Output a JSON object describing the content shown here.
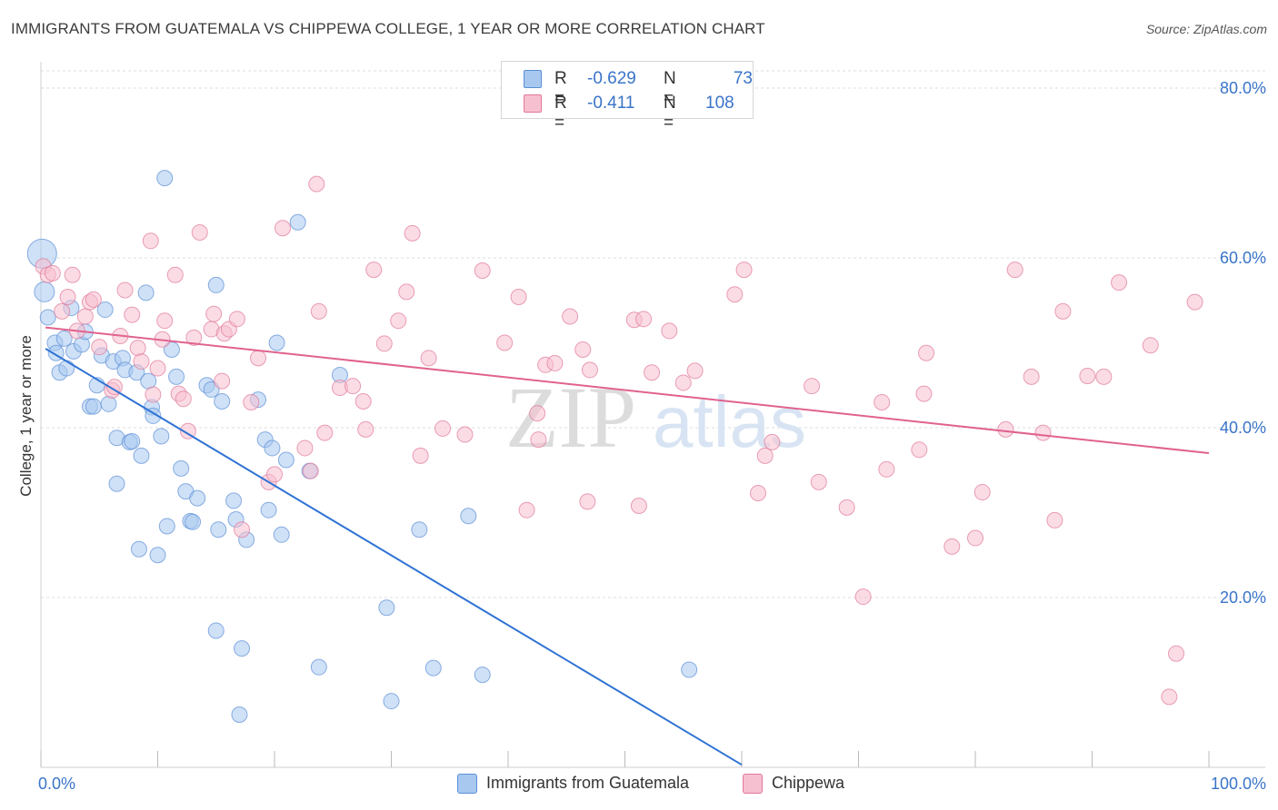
{
  "title": "IMMIGRANTS FROM GUATEMALA VS CHIPPEWA COLLEGE, 1 YEAR OR MORE CORRELATION CHART",
  "source": "Source: ZipAtlas.com",
  "watermark": {
    "zip": "ZIP",
    "atlas": "atlas"
  },
  "legend": {
    "rows": [
      {
        "r_label": "R =",
        "r_value": "-0.629",
        "n_label": "N =",
        "n_value": "73",
        "color": "#a8c8f0",
        "border": "#5b8fd6"
      },
      {
        "r_label": "R =",
        "r_value": "-0.411",
        "n_label": "N =",
        "n_value": "108",
        "color": "#f7c0d0",
        "border": "#e07898"
      }
    ]
  },
  "bottom_legend": [
    {
      "label": "Immigrants from Guatemala",
      "color": "#a8c8f0",
      "border": "#5b8fd6"
    },
    {
      "label": "Chippewa",
      "color": "#f7c0d0",
      "border": "#e07898"
    }
  ],
  "chart_data": {
    "type": "scatter",
    "xlabel": "",
    "ylabel": "College, 1 year or more",
    "xlim": [
      0,
      100
    ],
    "ylim": [
      0,
      80
    ],
    "x_tick_labels": [
      "0.0%",
      "100.0%"
    ],
    "y_ticks": [
      20,
      40,
      60,
      80
    ],
    "y_tick_labels": [
      "20.0%",
      "40.0%",
      "60.0%",
      "80.0%"
    ],
    "grid": true,
    "series": [
      {
        "name": "Immigrants from Guatemala",
        "color": "#a8c8f0",
        "stroke": "#5b8fd6",
        "line_color": "#2f73d4",
        "trend": {
          "x": [
            0.4,
            60.0
          ],
          "y": [
            49.3,
            0.3
          ]
        },
        "points": [
          [
            0.1,
            60.5
          ],
          [
            0.3,
            56.0
          ],
          [
            0.6,
            53.0
          ],
          [
            1.2,
            50.0
          ],
          [
            1.3,
            48.8
          ],
          [
            1.6,
            46.5
          ],
          [
            2.0,
            50.5
          ],
          [
            2.2,
            47.0
          ],
          [
            2.6,
            54.1
          ],
          [
            2.8,
            49.0
          ],
          [
            3.5,
            49.8
          ],
          [
            3.8,
            51.3
          ],
          [
            4.2,
            42.5
          ],
          [
            4.5,
            42.5
          ],
          [
            4.8,
            45.0
          ],
          [
            5.2,
            48.5
          ],
          [
            5.5,
            53.9
          ],
          [
            5.8,
            42.8
          ],
          [
            6.2,
            47.8
          ],
          [
            6.5,
            38.8
          ],
          [
            6.5,
            33.4
          ],
          [
            7.0,
            48.2
          ],
          [
            7.2,
            46.8
          ],
          [
            7.6,
            38.3
          ],
          [
            7.8,
            38.4
          ],
          [
            8.2,
            46.5
          ],
          [
            8.4,
            25.7
          ],
          [
            8.6,
            36.7
          ],
          [
            9.0,
            55.9
          ],
          [
            9.2,
            45.5
          ],
          [
            9.5,
            42.4
          ],
          [
            9.6,
            41.4
          ],
          [
            10.0,
            25.0
          ],
          [
            10.3,
            39.0
          ],
          [
            10.6,
            69.4
          ],
          [
            10.8,
            28.4
          ],
          [
            11.2,
            49.2
          ],
          [
            11.6,
            46.0
          ],
          [
            12.0,
            35.2
          ],
          [
            12.4,
            32.5
          ],
          [
            12.8,
            29.0
          ],
          [
            13.0,
            28.9
          ],
          [
            13.4,
            31.7
          ],
          [
            14.2,
            45.0
          ],
          [
            14.6,
            44.5
          ],
          [
            15.0,
            56.8
          ],
          [
            15.2,
            28.0
          ],
          [
            15.5,
            43.1
          ],
          [
            15.0,
            16.1
          ],
          [
            16.5,
            31.4
          ],
          [
            16.7,
            29.2
          ],
          [
            17.0,
            6.2
          ],
          [
            17.2,
            14.0
          ],
          [
            17.6,
            26.8
          ],
          [
            18.6,
            43.3
          ],
          [
            19.2,
            38.6
          ],
          [
            19.5,
            30.3
          ],
          [
            19.8,
            37.6
          ],
          [
            20.2,
            50.0
          ],
          [
            20.6,
            27.4
          ],
          [
            21.0,
            36.2
          ],
          [
            22.0,
            64.2
          ],
          [
            23.0,
            34.9
          ],
          [
            23.8,
            11.8
          ],
          [
            25.6,
            46.2
          ],
          [
            29.6,
            18.8
          ],
          [
            30.0,
            7.8
          ],
          [
            32.4,
            28.0
          ],
          [
            33.6,
            11.7
          ],
          [
            36.6,
            29.6
          ],
          [
            37.8,
            10.9
          ],
          [
            55.5,
            11.5
          ]
        ]
      },
      {
        "name": "Chippewa",
        "color": "#f7c0d0",
        "stroke": "#e07898",
        "line_color": "#e0628e",
        "trend": {
          "x": [
            0.4,
            100.0
          ],
          "y": [
            51.8,
            37.0
          ]
        },
        "points": [
          [
            0.2,
            59.0
          ],
          [
            0.6,
            58.0
          ],
          [
            1.0,
            58.2
          ],
          [
            1.8,
            53.7
          ],
          [
            2.3,
            55.4
          ],
          [
            2.7,
            58.0
          ],
          [
            3.1,
            51.4
          ],
          [
            3.8,
            53.1
          ],
          [
            4.2,
            54.8
          ],
          [
            4.5,
            55.1
          ],
          [
            5.0,
            49.5
          ],
          [
            6.1,
            44.4
          ],
          [
            6.3,
            44.8
          ],
          [
            6.8,
            50.8
          ],
          [
            7.2,
            56.2
          ],
          [
            7.8,
            53.3
          ],
          [
            8.3,
            49.4
          ],
          [
            8.6,
            47.8
          ],
          [
            9.4,
            62.0
          ],
          [
            9.6,
            43.9
          ],
          [
            10.0,
            47.0
          ],
          [
            10.4,
            50.4
          ],
          [
            10.6,
            52.6
          ],
          [
            11.5,
            58.0
          ],
          [
            11.8,
            44.0
          ],
          [
            12.2,
            43.4
          ],
          [
            12.6,
            39.6
          ],
          [
            13.1,
            50.6
          ],
          [
            13.6,
            63.0
          ],
          [
            14.6,
            51.6
          ],
          [
            14.8,
            53.4
          ],
          [
            15.5,
            45.5
          ],
          [
            15.7,
            51.1
          ],
          [
            16.1,
            51.6
          ],
          [
            16.8,
            52.8
          ],
          [
            17.2,
            28.0
          ],
          [
            18.0,
            43.0
          ],
          [
            18.6,
            48.2
          ],
          [
            19.5,
            33.6
          ],
          [
            20.0,
            34.5
          ],
          [
            20.7,
            63.5
          ],
          [
            22.6,
            37.6
          ],
          [
            23.1,
            34.9
          ],
          [
            23.6,
            68.7
          ],
          [
            23.8,
            53.7
          ],
          [
            24.3,
            39.4
          ],
          [
            25.6,
            44.7
          ],
          [
            26.7,
            44.9
          ],
          [
            27.6,
            43.1
          ],
          [
            27.8,
            39.8
          ],
          [
            28.5,
            58.6
          ],
          [
            29.4,
            49.9
          ],
          [
            30.6,
            52.6
          ],
          [
            31.3,
            56.0
          ],
          [
            31.8,
            62.9
          ],
          [
            32.5,
            36.7
          ],
          [
            33.2,
            48.2
          ],
          [
            34.4,
            39.9
          ],
          [
            36.3,
            39.2
          ],
          [
            37.8,
            58.5
          ],
          [
            39.7,
            50.0
          ],
          [
            40.9,
            55.4
          ],
          [
            41.6,
            30.3
          ],
          [
            42.5,
            41.7
          ],
          [
            42.6,
            38.6
          ],
          [
            43.2,
            47.4
          ],
          [
            44.0,
            47.6
          ],
          [
            45.3,
            53.1
          ],
          [
            46.4,
            49.2
          ],
          [
            46.8,
            31.3
          ],
          [
            47.0,
            46.8
          ],
          [
            50.8,
            52.7
          ],
          [
            51.2,
            30.8
          ],
          [
            51.6,
            52.8
          ],
          [
            52.3,
            46.5
          ],
          [
            53.8,
            51.4
          ],
          [
            55.0,
            45.3
          ],
          [
            56.0,
            46.7
          ],
          [
            59.4,
            55.7
          ],
          [
            60.2,
            58.6
          ],
          [
            61.4,
            32.3
          ],
          [
            62.0,
            36.7
          ],
          [
            62.6,
            38.3
          ],
          [
            66.0,
            44.9
          ],
          [
            66.6,
            33.6
          ],
          [
            69.0,
            30.6
          ],
          [
            70.4,
            20.1
          ],
          [
            72.0,
            43.0
          ],
          [
            72.4,
            35.1
          ],
          [
            75.2,
            37.4
          ],
          [
            75.6,
            44.0
          ],
          [
            75.8,
            48.8
          ],
          [
            78.0,
            26.0
          ],
          [
            80.0,
            27.0
          ],
          [
            80.6,
            32.4
          ],
          [
            82.6,
            39.8
          ],
          [
            83.4,
            58.6
          ],
          [
            84.8,
            46.0
          ],
          [
            85.8,
            39.4
          ],
          [
            86.8,
            29.1
          ],
          [
            87.5,
            53.7
          ],
          [
            89.6,
            46.1
          ],
          [
            91.0,
            46.0
          ],
          [
            92.3,
            57.1
          ],
          [
            95.0,
            49.7
          ],
          [
            97.2,
            13.4
          ],
          [
            96.6,
            8.3
          ],
          [
            98.8,
            54.8
          ]
        ]
      }
    ]
  }
}
